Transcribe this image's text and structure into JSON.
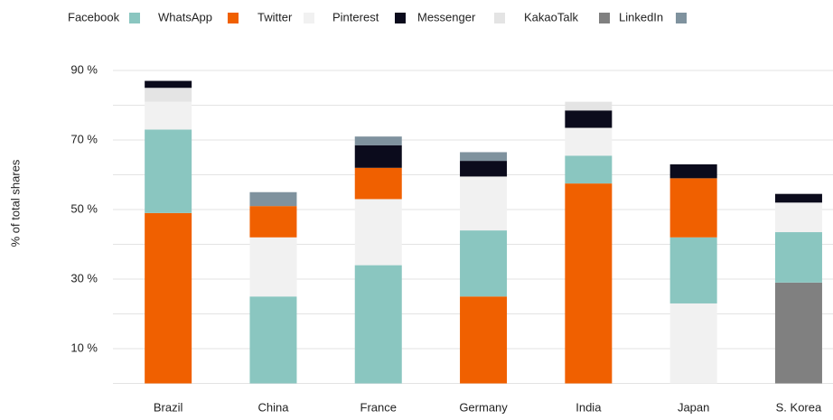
{
  "chart_data": {
    "type": "stacked_bar",
    "y_label": "% of total shares",
    "categories": [
      "Brazil",
      "China",
      "France",
      "Germany",
      "India",
      "Japan",
      "S. Korea"
    ],
    "series": [
      {
        "name": "Facebook",
        "color": "#8ac6c0",
        "values": [
          24,
          25,
          34,
          19,
          8,
          19,
          14.5
        ]
      },
      {
        "name": "WhatsApp",
        "color": "#f06000",
        "values": [
          49,
          9,
          9,
          25,
          57.5,
          17,
          null
        ]
      },
      {
        "name": "Twitter",
        "color": "#f1f1f1",
        "values": [
          8,
          17,
          19,
          15.5,
          8,
          23,
          8.5
        ]
      },
      {
        "name": "Pinterest",
        "color": "#0b0b1c",
        "values": [
          2,
          null,
          6.5,
          4.5,
          5,
          4,
          2.5
        ]
      },
      {
        "name": "Messenger",
        "color": "#e4e4e4",
        "values": [
          4,
          null,
          null,
          null,
          2.5,
          null,
          null
        ]
      },
      {
        "name": "KakaoTalk",
        "color": "#808080",
        "values": [
          null,
          null,
          null,
          null,
          null,
          null,
          29
        ]
      },
      {
        "name": "LinkedIn",
        "color": "#7f929e",
        "values": [
          null,
          4,
          2.5,
          2.5,
          null,
          null,
          null
        ]
      }
    ],
    "ylim": [
      0,
      90
    ],
    "yticks": [
      {
        "value": 10,
        "label": "10 %"
      },
      {
        "value": 30,
        "label": "30 %"
      },
      {
        "value": 50,
        "label": "50 %"
      },
      {
        "value": 70,
        "label": "70 %"
      },
      {
        "value": 90,
        "label": "90 %"
      }
    ],
    "minor_yticks": [
      0,
      20,
      40,
      60,
      80
    ],
    "grid": true,
    "legend": "top"
  }
}
